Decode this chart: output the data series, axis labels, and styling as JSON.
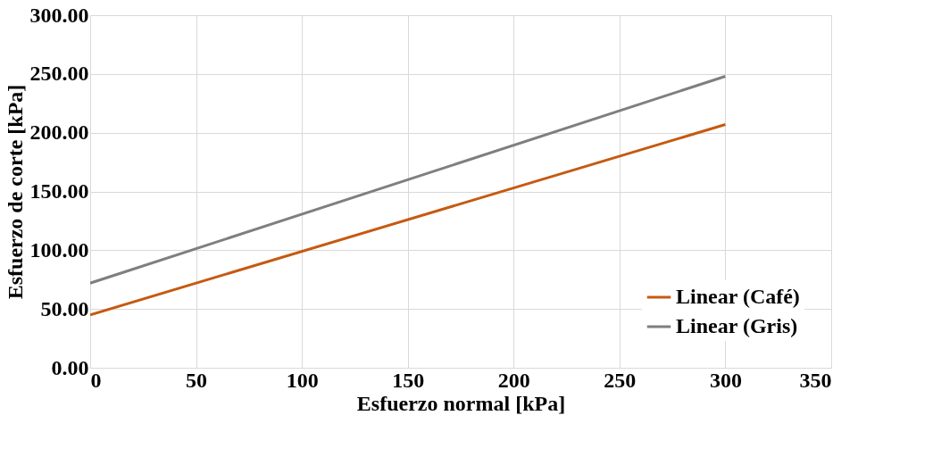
{
  "chart_data": {
    "type": "line",
    "xlabel": "Esfuerzo normal [kPa]",
    "ylabel": "Esfuerzo de corte [kPa]",
    "x": [
      0,
      300
    ],
    "series": [
      {
        "name": "Linear (Café)",
        "color": "#c55a11",
        "values": [
          45,
          207
        ]
      },
      {
        "name": "Linear (Gris)",
        "color": "#7f7f7f",
        "values": [
          72,
          248
        ]
      }
    ],
    "xlim": [
      0,
      350
    ],
    "xticks": [
      0,
      50,
      100,
      150,
      200,
      250,
      300,
      350
    ],
    "ylim": [
      0,
      300
    ],
    "yticks": [
      {
        "value": 0,
        "label": "0.00"
      },
      {
        "value": 50,
        "label": "50.00"
      },
      {
        "value": 100,
        "label": "100.00"
      },
      {
        "value": 150,
        "label": "150.00"
      },
      {
        "value": 200,
        "label": "200.00"
      },
      {
        "value": 250,
        "label": "250.00"
      },
      {
        "value": 300,
        "label": "300.00"
      }
    ],
    "grid": true,
    "legend": "bottom right",
    "marker": "none",
    "line_style": "solid"
  }
}
